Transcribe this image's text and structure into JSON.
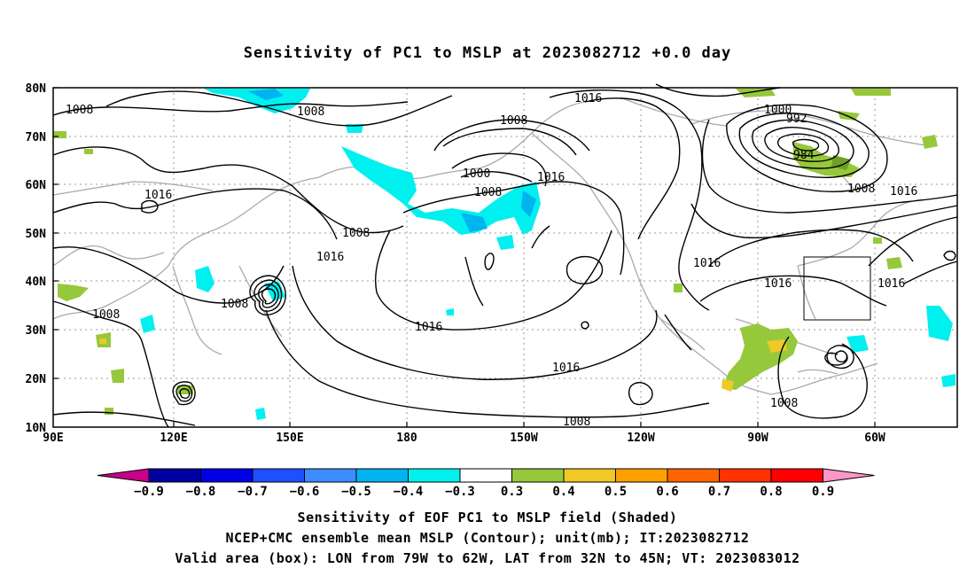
{
  "title": "Sensitivity of PC1 to MSLP at 2023082712 +0.0 day",
  "lat_labels": [
    "80N",
    "70N",
    "60N",
    "50N",
    "40N",
    "30N",
    "20N",
    "10N"
  ],
  "lon_labels": [
    "90E",
    "120E",
    "150E",
    "180",
    "150W",
    "120W",
    "90W",
    "60W"
  ],
  "contour_labels": [
    {
      "text": "1008"
    },
    {
      "text": "1008"
    },
    {
      "text": "1016"
    },
    {
      "text": "1008"
    },
    {
      "text": "1016"
    },
    {
      "text": "1008"
    },
    {
      "text": "1008"
    },
    {
      "text": "1000"
    },
    {
      "text": "1008"
    },
    {
      "text": "1016"
    },
    {
      "text": "1016"
    },
    {
      "text": "1016"
    },
    {
      "text": "1008"
    },
    {
      "text": "1016"
    },
    {
      "text": "1000"
    },
    {
      "text": "992"
    },
    {
      "text": "984"
    },
    {
      "text": "1008"
    },
    {
      "text": "1016"
    },
    {
      "text": "1016"
    },
    {
      "text": "1016"
    },
    {
      "text": "1016"
    },
    {
      "text": "1008"
    },
    {
      "text": "1008"
    }
  ],
  "colorbar": {
    "labels": [
      "-0.9",
      "-0.8",
      "-0.7",
      "-0.6",
      "-0.5",
      "-0.4",
      "-0.3",
      "0.3",
      "0.4",
      "0.5",
      "0.6",
      "0.7",
      "0.8",
      "0.9"
    ],
    "colors": [
      "#0000a0",
      "#0000e6",
      "#1e50ff",
      "#3c8cff",
      "#00b4f0",
      "#00f0f0",
      "#ffffff",
      "#96c83c",
      "#f0c828",
      "#ffa000",
      "#ff6400",
      "#ff3200",
      "#ff0000"
    ],
    "low_color": "#c8008c",
    "high_color": "#ff96c8"
  },
  "captions": [
    "Sensitivity of EOF PC1 to MSLP field (Shaded)",
    "NCEP+CMC ensemble mean MSLP (Contour); unit(mb); IT:2023082712",
    "Valid area (box): LON from 79W to 62W, LAT from 32N to 45N; VT: 2023083012"
  ]
}
